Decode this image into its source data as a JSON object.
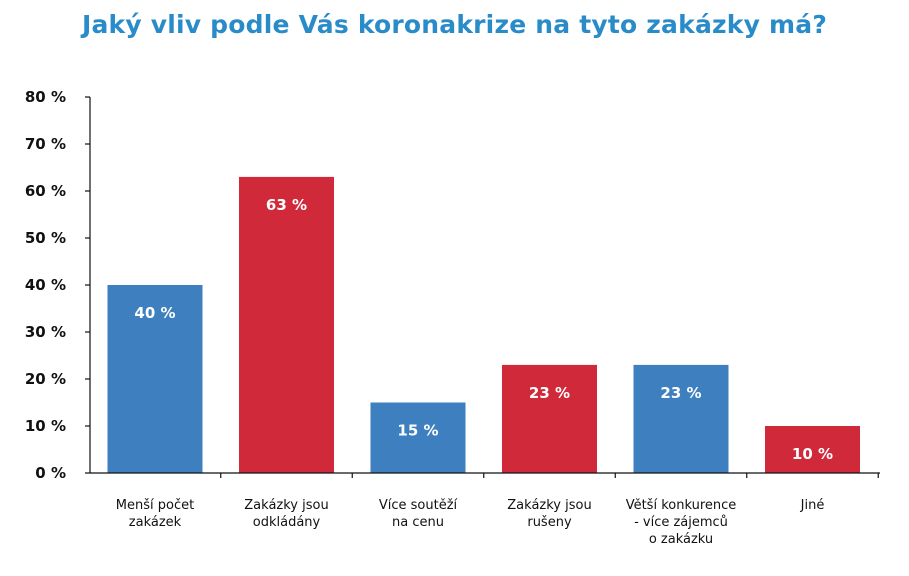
{
  "chart_data": {
    "type": "bar",
    "title": "Jaký vliv podle Vás koronakrize na tyto zakázky má?",
    "xlabel": "",
    "ylabel": "",
    "ylim": [
      0,
      80
    ],
    "yticks": [
      0,
      10,
      20,
      30,
      40,
      50,
      60,
      70,
      80
    ],
    "ytick_labels": [
      "0 %",
      "10 %",
      "20 %",
      "30 %",
      "40 %",
      "50 %",
      "60 %",
      "70 %",
      "80 %"
    ],
    "grid": false,
    "legend": "none",
    "categories": [
      [
        "Menší počet",
        "zakázek"
      ],
      [
        "Zakázky jsou",
        "odkládány"
      ],
      [
        "Více soutěží",
        "na cenu"
      ],
      [
        "Zakázky jsou",
        "rušeny"
      ],
      [
        "Větší konkurence",
        "- více zájemců",
        "o zakázku"
      ],
      [
        "Jiné"
      ]
    ],
    "values": [
      40,
      63,
      15,
      23,
      23,
      10
    ],
    "data_labels": [
      "40 %",
      "63 %",
      "15 %",
      "23 %",
      "23 %",
      "10 %"
    ],
    "bar_colors": [
      "#3d7fbf",
      "#d0293a",
      "#3d7fbf",
      "#d0293a",
      "#3d7fbf",
      "#d0293a"
    ]
  },
  "colors": {
    "title": "#2a8bc9",
    "axis": "#111111",
    "blue": "#3d7fbf",
    "red": "#d0293a"
  }
}
